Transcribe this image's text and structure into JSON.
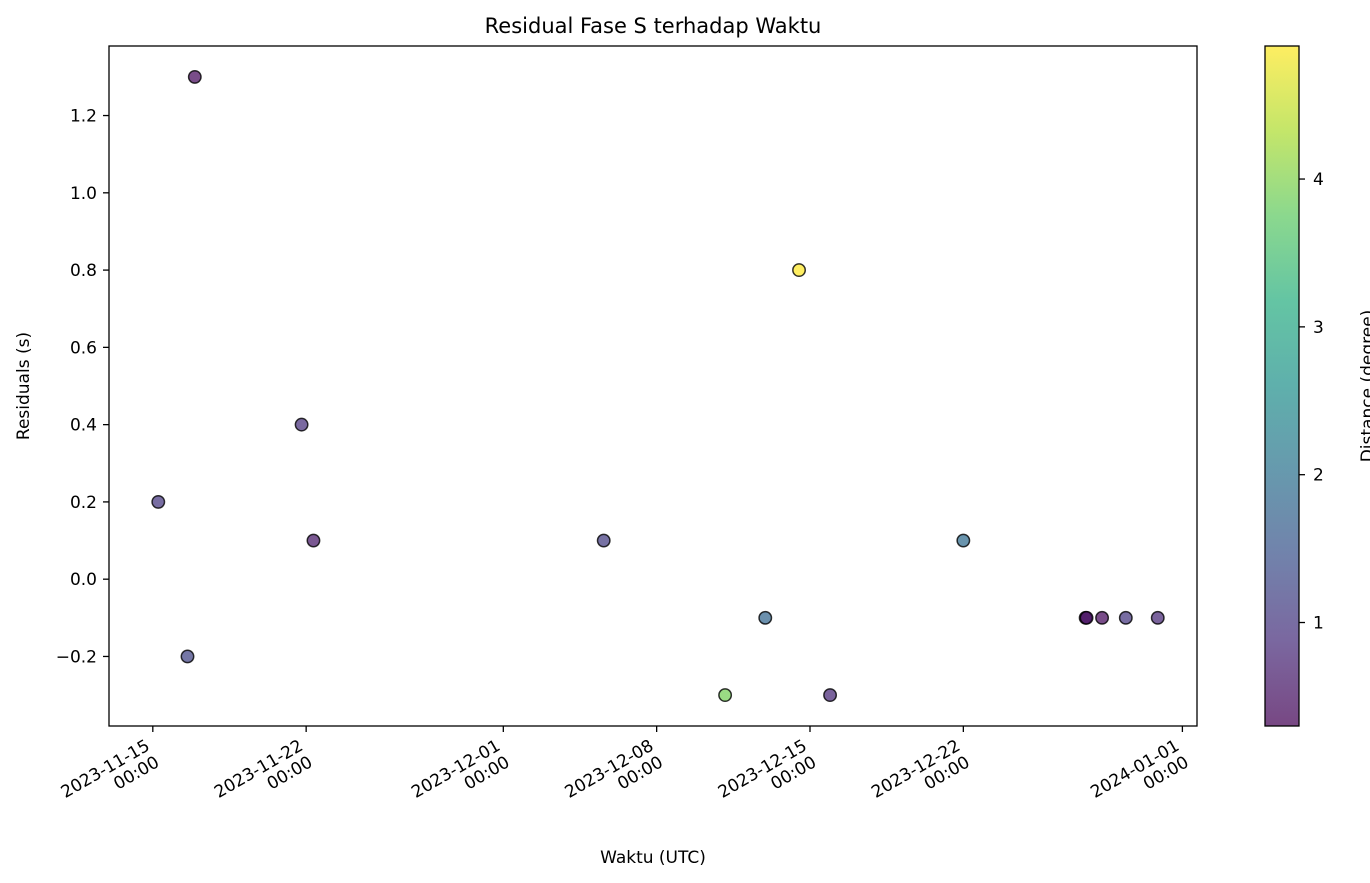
{
  "chart_data": {
    "type": "scatter",
    "title": "Residual Fase S terhadap Waktu",
    "xlabel": "Waktu (UTC)",
    "ylabel": "Residuals (s)",
    "x_ticks": [
      {
        "date": "2023-11-15",
        "line1": "2023-11-15",
        "line2": "00:00"
      },
      {
        "date": "2023-11-22",
        "line1": "2023-11-22",
        "line2": "00:00"
      },
      {
        "date": "2023-12-01",
        "line1": "2023-12-01",
        "line2": "00:00"
      },
      {
        "date": "2023-12-08",
        "line1": "2023-12-08",
        "line2": "00:00"
      },
      {
        "date": "2023-12-15",
        "line1": "2023-12-15",
        "line2": "00:00"
      },
      {
        "date": "2023-12-22",
        "line1": "2023-12-22",
        "line2": "00:00"
      },
      {
        "date": "2024-01-01",
        "line1": "2024-01-01",
        "line2": "00:00"
      }
    ],
    "y_ticks": [
      "−0.2",
      "0.0",
      "0.2",
      "0.4",
      "0.6",
      "0.8",
      "1.0",
      "1.2"
    ],
    "xlim": [
      "2023-11-13T00:00",
      "2024-01-01T16:00"
    ],
    "ylim": [
      -0.38,
      1.38
    ],
    "grid": false,
    "colorbar": {
      "label": "Distance (degree)",
      "colormap": "viridis",
      "range": [
        0.3,
        4.9
      ],
      "ticks": [
        "1",
        "2",
        "3",
        "4"
      ]
    },
    "points": [
      {
        "x": "2023-11-15T06:00",
        "y": 0.2,
        "distance": 1.0
      },
      {
        "x": "2023-11-16T14:00",
        "y": -0.2,
        "distance": 1.2
      },
      {
        "x": "2023-11-16T22:00",
        "y": 1.3,
        "distance": 0.4
      },
      {
        "x": "2023-11-21T19:00",
        "y": 0.4,
        "distance": 0.9
      },
      {
        "x": "2023-11-22T08:00",
        "y": 0.1,
        "distance": 0.6
      },
      {
        "x": "2023-12-05T14:00",
        "y": 0.1,
        "distance": 1.1
      },
      {
        "x": "2023-12-11T03:00",
        "y": -0.3,
        "distance": 3.9
      },
      {
        "x": "2023-12-12T23:00",
        "y": -0.1,
        "distance": 1.8
      },
      {
        "x": "2023-12-14T12:00",
        "y": 0.8,
        "distance": 4.9
      },
      {
        "x": "2023-12-15T22:00",
        "y": -0.3,
        "distance": 0.8
      },
      {
        "x": "2023-12-22T00:00",
        "y": 0.1,
        "distance": 1.9
      },
      {
        "x": "2023-12-27T14:00",
        "y": -0.1,
        "distance": 0.3
      },
      {
        "x": "2023-12-27T15:00",
        "y": -0.1,
        "distance": 0.5
      },
      {
        "x": "2023-12-28T08:00",
        "y": -0.1,
        "distance": 0.4
      },
      {
        "x": "2023-12-29T10:00",
        "y": -0.1,
        "distance": 1.0
      },
      {
        "x": "2023-12-30T21:00",
        "y": -0.1,
        "distance": 0.8
      }
    ]
  }
}
